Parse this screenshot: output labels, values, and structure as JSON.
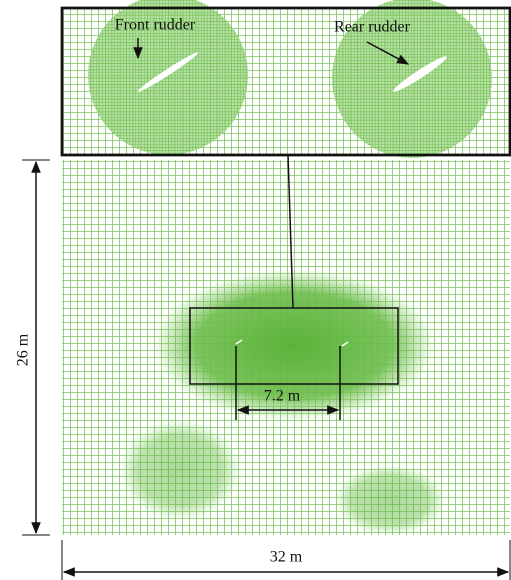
{
  "labels": {
    "front_rudder": "Front rudder",
    "rear_rudder": "Rear rudder",
    "height": "26 m",
    "spacing": "7.2 m",
    "width": "32 m"
  }
}
